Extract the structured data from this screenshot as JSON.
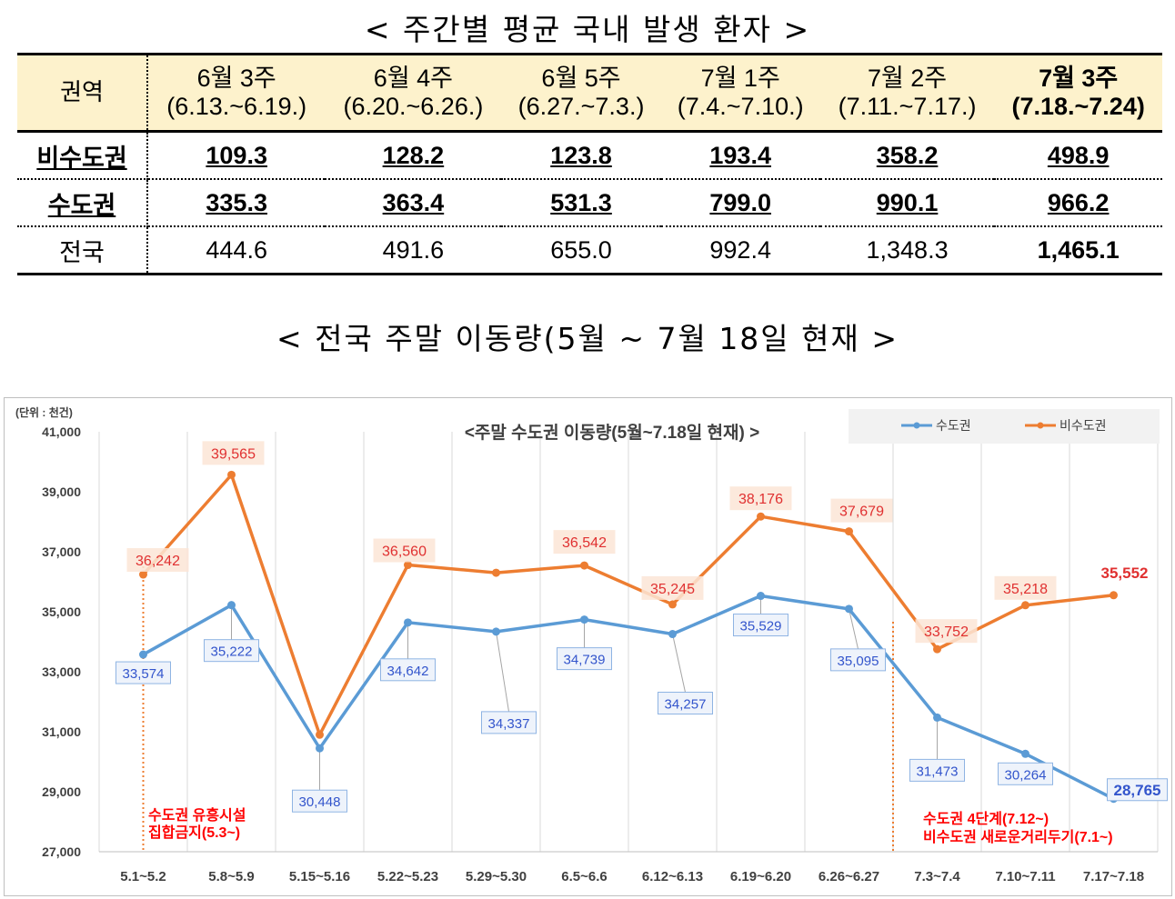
{
  "table_title": "< 주간별 평균 국내 발생 환자 >",
  "table": {
    "region_header": "권역",
    "weeks": [
      {
        "label": "6월 3주",
        "range": "(6.13.~6.19.)"
      },
      {
        "label": "6월 4주",
        "range": "(6.20.~6.26.)"
      },
      {
        "label": "6월 5주",
        "range": "(6.27.~7.3.)"
      },
      {
        "label": "7월 1주",
        "range": "(7.4.~7.10.)"
      },
      {
        "label": "7월 2주",
        "range": "(7.11.~7.17.)"
      },
      {
        "label": "7월 3주",
        "range": "(7.18.~7.24)"
      }
    ],
    "rows": [
      {
        "region": "비수도권",
        "values": [
          "109.3",
          "128.2",
          "123.8",
          "193.4",
          "358.2",
          "498.9"
        ]
      },
      {
        "region": "수도권",
        "values": [
          "335.3",
          "363.4",
          "531.3",
          "799.0",
          "990.1",
          "966.2"
        ]
      },
      {
        "region": "전국",
        "values": [
          "444.6",
          "491.6",
          "655.0",
          "992.4",
          "1,348.3",
          "1,465.1"
        ]
      }
    ]
  },
  "section_title": "< 전국 주말 이동량(5월 ~ 7월 18일 현재 >",
  "chart_data": {
    "type": "line",
    "title": "<주말 수도권 이동량(5월~7.18일 현재) >",
    "unit_label": "(단위 : 천건)",
    "categories": [
      "5.1~5.2",
      "5.8~5.9",
      "5.15~5.16",
      "5.22~5.23",
      "5.29~5.30",
      "6.5~6.6",
      "6.12~6.13",
      "6.19~6.20",
      "6.26~6.27",
      "7.3~7.4",
      "7.10~7.11",
      "7.17~7.18"
    ],
    "y_ticks": [
      "27,000",
      "29,000",
      "31,000",
      "33,000",
      "35,000",
      "37,000",
      "39,000",
      "41,000"
    ],
    "ylim": [
      27000,
      41000
    ],
    "grid": "vertical",
    "legend_position": "top-right",
    "series": [
      {
        "name": "수도권",
        "color": "#5b9bd5",
        "label_color": "#3355cc",
        "values": [
          33574,
          35222,
          30448,
          34642,
          34337,
          34739,
          34257,
          35529,
          35095,
          31473,
          30264,
          28765
        ],
        "labels": [
          "33,574",
          "35,222",
          "30,448",
          "34,642",
          "34,337",
          "34,739",
          "34,257",
          "35,529",
          "35,095",
          "31,473",
          "30,264",
          "28,765"
        ]
      },
      {
        "name": "비수도권",
        "color": "#ed7d31",
        "label_color": "#e03030",
        "values": [
          36242,
          39565,
          30900,
          36560,
          36300,
          36542,
          35245,
          38176,
          37679,
          33752,
          35218,
          35552
        ],
        "labels": [
          "36,242",
          "39,565",
          "",
          "36,560",
          "",
          "36,542",
          "35,245",
          "38,176",
          "37,679",
          "33,752",
          "35,218",
          "35,552"
        ]
      }
    ],
    "annotations": [
      {
        "lines": [
          "수도권 유흥시설",
          "집합금지(5.3~)"
        ],
        "color": "#ff0000"
      },
      {
        "lines": [
          "수도권 4단계(7.12~)",
          "비수도권 새로운거리두기(7.1~)"
        ],
        "color": "#ff0000"
      }
    ]
  }
}
